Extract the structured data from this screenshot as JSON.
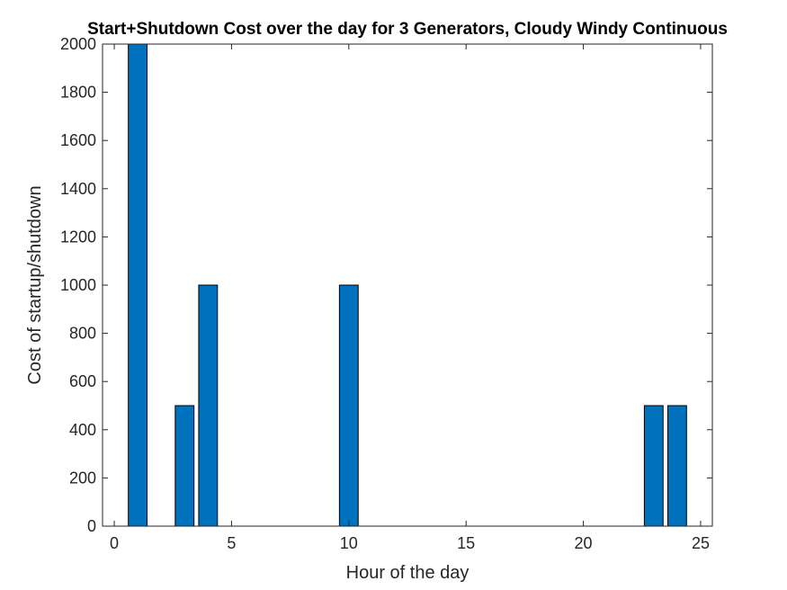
{
  "chart_data": {
    "type": "bar",
    "title": "Start+Shutdown Cost over the day for 3 Generators, Cloudy Windy Continuous",
    "xlabel": "Hour of the day",
    "ylabel": "Cost of startup/shutdown",
    "xlim": [
      -0.5,
      25.5
    ],
    "ylim": [
      0,
      2000
    ],
    "xticks": [
      0,
      5,
      10,
      15,
      20,
      25
    ],
    "yticks": [
      0,
      200,
      400,
      600,
      800,
      1000,
      1200,
      1400,
      1600,
      1800,
      2000
    ],
    "x": [
      1,
      2,
      3,
      4,
      5,
      6,
      7,
      8,
      9,
      10,
      11,
      12,
      13,
      14,
      15,
      16,
      17,
      18,
      19,
      20,
      21,
      22,
      23,
      24
    ],
    "values": [
      2000,
      0,
      500,
      1000,
      0,
      0,
      0,
      0,
      0,
      1000,
      0,
      0,
      0,
      0,
      0,
      0,
      0,
      0,
      0,
      0,
      0,
      0,
      500,
      500
    ],
    "bar_color": "#0072BD",
    "grid": false,
    "legend": "none"
  }
}
